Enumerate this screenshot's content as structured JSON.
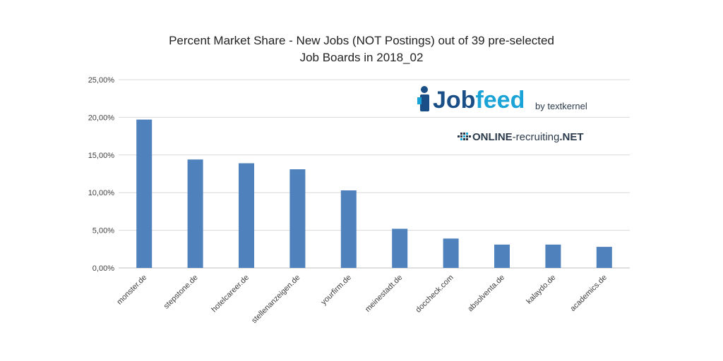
{
  "chart_data": {
    "type": "bar",
    "title_lines": [
      "Percent Market Share - New Jobs (NOT Postings) out of 39 pre-selected",
      "Job Boards in 2018_02"
    ],
    "categories": [
      "monster.de",
      "stepstone.de",
      "hotelcareer.de",
      "stellenanzeigen.de",
      "yourfirm.de",
      "meinestadt.de",
      "doccheck.com",
      "absolventa.de",
      "kalaydo.de",
      "academics.de"
    ],
    "values": [
      19.7,
      14.4,
      13.9,
      13.1,
      10.3,
      5.2,
      3.9,
      3.1,
      3.1,
      2.8
    ],
    "ylim": [
      0,
      25
    ],
    "yticks": [
      0,
      5,
      10,
      15,
      20,
      25
    ],
    "ytick_labels": [
      "0,00%",
      "5,00%",
      "10,00%",
      "15,00%",
      "20,00%",
      "25,00%"
    ],
    "xlabel": "",
    "ylabel": "",
    "grid": true,
    "bar_color": "#4f81bd",
    "grid_color": "#d9d9d9"
  },
  "logos": {
    "jobfeed": {
      "part1": "Job",
      "part2": "feed",
      "sub": "by textkernel",
      "color1": "#1a4e86",
      "color2": "#1aa3d6"
    },
    "online_recruiting": {
      "part1": "ONLINE",
      "part2": "-recruiting",
      "part3": ".NET",
      "accent": "#1aa3d6"
    }
  }
}
